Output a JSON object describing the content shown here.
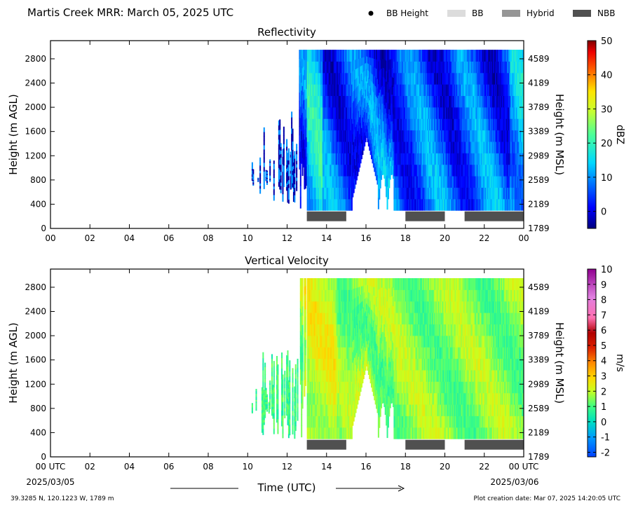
{
  "title": "Martis Creek MRR:  March 05, 2025 UTC",
  "legend": [
    {
      "label": "BB Height",
      "color": "#000000",
      "marker": "dot"
    },
    {
      "label": "BB",
      "color": "#dcdcdc",
      "marker": "bar"
    },
    {
      "label": "Hybrid",
      "color": "#969696",
      "marker": "bar"
    },
    {
      "label": "NBB",
      "color": "#505050",
      "marker": "bar"
    }
  ],
  "footer": {
    "location": "39.3285 N, 120.1223 W, 1789 m",
    "creation": "Plot creation date: Mar 07, 2025 14:20:05 UTC",
    "start_date": "2025/03/05",
    "end_date": "2025/03/06",
    "x_title": "Time (UTC)"
  },
  "chart_data": [
    {
      "type": "heatmap",
      "title": "Reflectivity",
      "ylabel": "Height (m AGL)",
      "y2label": "Height (m MSL)",
      "x_range": [
        0,
        24
      ],
      "ylim": [
        0,
        3100
      ],
      "x_ticks": [
        "00",
        "02",
        "04",
        "06",
        "08",
        "10",
        "12",
        "14",
        "16",
        "18",
        "20",
        "22",
        "00"
      ],
      "y_ticks": [
        0,
        400,
        800,
        1200,
        1600,
        2000,
        2400,
        2800
      ],
      "y2_ticks": [
        "1789",
        "2189",
        "2589",
        "2989",
        "3389",
        "3789",
        "4189",
        "4589"
      ],
      "colorbar": {
        "label": "dBZ",
        "min": -5,
        "max": 50,
        "ticks": [
          0,
          10,
          20,
          30,
          40,
          50
        ]
      },
      "bright_band_type": [
        {
          "start": 13.0,
          "end": 15.0,
          "type": "NBB"
        },
        {
          "start": 18.0,
          "end": 20.0,
          "type": "NBB"
        },
        {
          "start": 21.0,
          "end": 24.0,
          "type": "NBB"
        }
      ]
    },
    {
      "type": "heatmap",
      "title": "Vertical Velocity",
      "ylabel": "Height (m AGL)",
      "y2label": "Height (m MSL)",
      "x_range": [
        0,
        24
      ],
      "ylim": [
        0,
        3100
      ],
      "x_ticks": [
        "00 UTC",
        "02",
        "04",
        "06",
        "08",
        "10",
        "12",
        "14",
        "16",
        "18",
        "20",
        "22",
        "00 UTC"
      ],
      "y_ticks": [
        0,
        400,
        800,
        1200,
        1600,
        2000,
        2400,
        2800
      ],
      "y2_ticks": [
        "1789",
        "2189",
        "2589",
        "2989",
        "3389",
        "3789",
        "4189",
        "4589"
      ],
      "colorbar": {
        "label": "m/s",
        "min": -2.3,
        "max": 10,
        "ticks": [
          -2,
          -1,
          0,
          1,
          2,
          3,
          4,
          5,
          6,
          7,
          8,
          9,
          10
        ]
      },
      "bright_band_type": [
        {
          "start": 13.0,
          "end": 15.0,
          "type": "NBB"
        },
        {
          "start": 18.0,
          "end": 20.0,
          "type": "NBB"
        },
        {
          "start": 21.0,
          "end": 24.0,
          "type": "NBB"
        }
      ]
    }
  ]
}
